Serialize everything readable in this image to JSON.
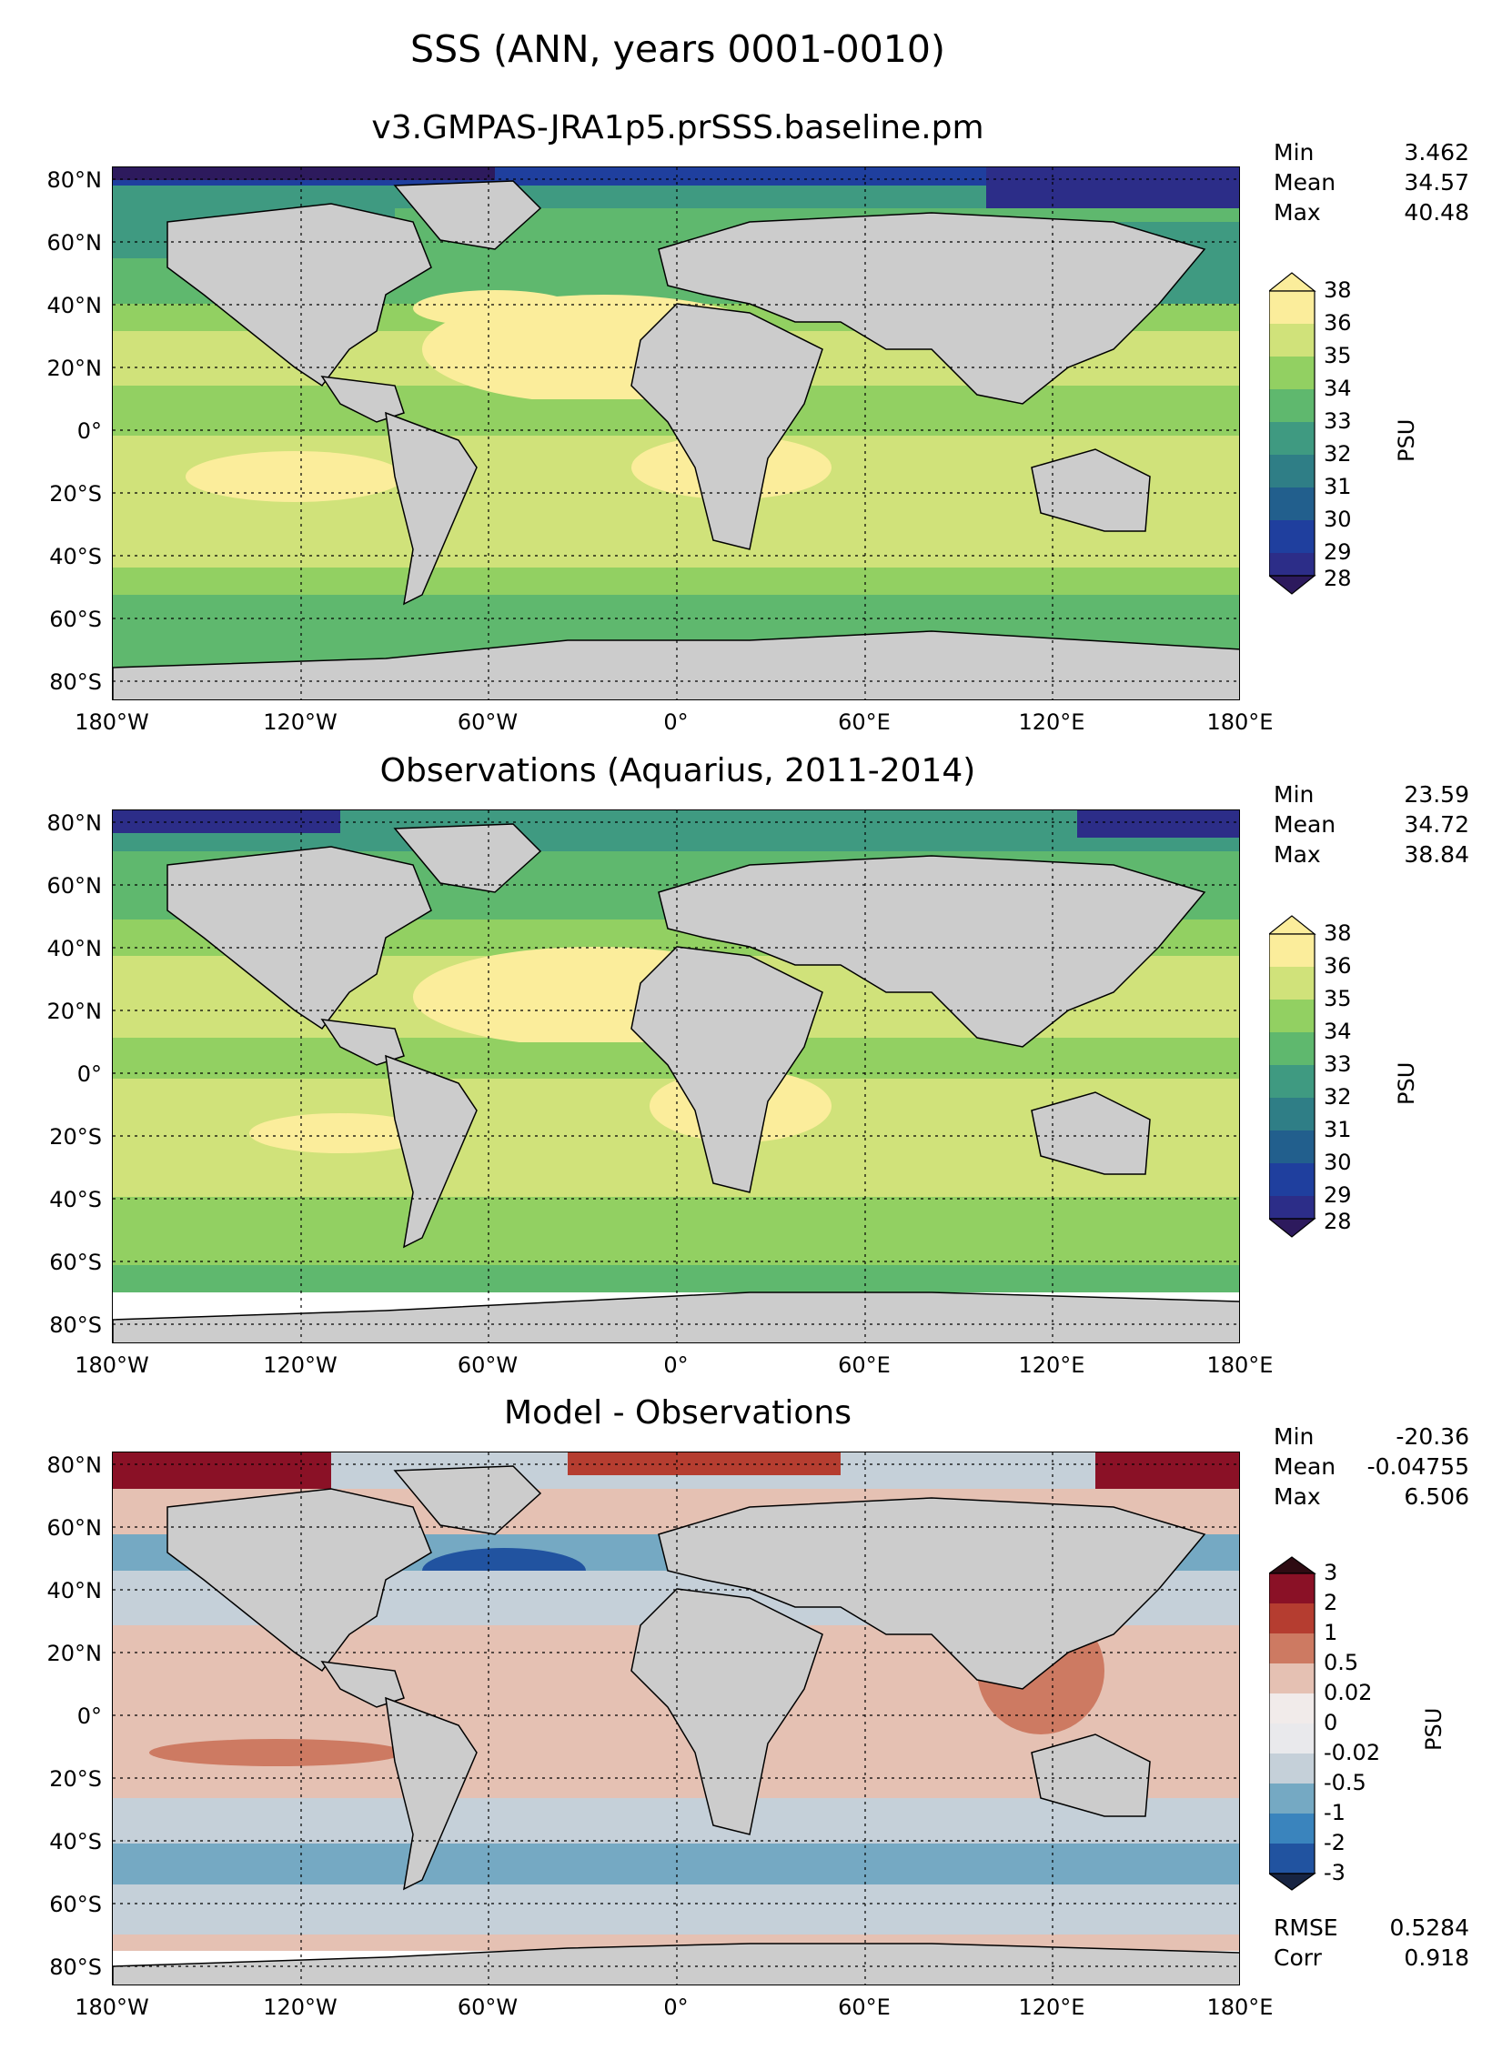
{
  "chart_data": [
    {
      "type": "heatmap",
      "title": "v3.GMPAS-JRA1p5.prSSS.baseline.pm",
      "suptitle": "SSS (ANN, years 0001-0010)",
      "lat_ticks": [
        "80°N",
        "60°N",
        "40°N",
        "20°N",
        "0°",
        "20°S",
        "40°S",
        "60°S",
        "80°S"
      ],
      "lon_ticks": [
        "180°W",
        "120°W",
        "60°W",
        "0°",
        "60°E",
        "120°E",
        "180°E"
      ],
      "colorbar": {
        "levels": [
          "38",
          "36",
          "35",
          "34",
          "33",
          "32",
          "31",
          "30",
          "29",
          "28"
        ],
        "unit": "PSU",
        "colors": [
          "#fbed9b",
          "#d0e27a",
          "#92d062",
          "#5fb86e",
          "#3f9a81",
          "#2f7e86",
          "#225f8d",
          "#1f3f9e",
          "#2c2d88",
          "#2d1a5d"
        ]
      },
      "stats": [
        {
          "label": "Min",
          "value": "3.462"
        },
        {
          "label": "Mean",
          "value": "34.57"
        },
        {
          "label": "Max",
          "value": "40.48"
        }
      ]
    },
    {
      "type": "heatmap",
      "title": "Observations (Aquarius, 2011-2014)",
      "lat_ticks": [
        "80°N",
        "60°N",
        "40°N",
        "20°N",
        "0°",
        "20°S",
        "40°S",
        "60°S",
        "80°S"
      ],
      "lon_ticks": [
        "180°W",
        "120°W",
        "60°W",
        "0°",
        "60°E",
        "120°E",
        "180°E"
      ],
      "colorbar": {
        "levels": [
          "38",
          "36",
          "35",
          "34",
          "33",
          "32",
          "31",
          "30",
          "29",
          "28"
        ],
        "unit": "PSU",
        "colors": [
          "#fbed9b",
          "#d0e27a",
          "#92d062",
          "#5fb86e",
          "#3f9a81",
          "#2f7e86",
          "#225f8d",
          "#1f3f9e",
          "#2c2d88",
          "#2d1a5d"
        ]
      },
      "stats": [
        {
          "label": "Min",
          "value": "23.59"
        },
        {
          "label": "Mean",
          "value": "34.72"
        },
        {
          "label": "Max",
          "value": "38.84"
        }
      ]
    },
    {
      "type": "heatmap",
      "title": "Model - Observations",
      "lat_ticks": [
        "80°N",
        "60°N",
        "40°N",
        "20°N",
        "0°",
        "20°S",
        "40°S",
        "60°S",
        "80°S"
      ],
      "lon_ticks": [
        "180°W",
        "120°W",
        "60°W",
        "0°",
        "60°E",
        "120°E",
        "180°E"
      ],
      "colorbar": {
        "levels": [
          "3",
          "2",
          "1",
          "0.5",
          "0.02",
          "0",
          "-0.02",
          "-0.5",
          "-1",
          "-2",
          "-3"
        ],
        "unit": "PSU",
        "colors": [
          "#8a1126",
          "#b53d30",
          "#cd7a62",
          "#e5c1b3",
          "#f1ebea",
          "#e9e9ec",
          "#c5d0d9",
          "#75a9c3",
          "#3a84bd",
          "#2153a0",
          "#172442"
        ]
      },
      "stats": [
        {
          "label": "Min",
          "value": "-20.36"
        },
        {
          "label": "Mean",
          "value": "-0.04755"
        },
        {
          "label": "Max",
          "value": "6.506"
        }
      ],
      "metrics": [
        {
          "label": "RMSE",
          "value": "0.5284"
        },
        {
          "label": "Corr",
          "value": "0.918"
        }
      ]
    }
  ]
}
